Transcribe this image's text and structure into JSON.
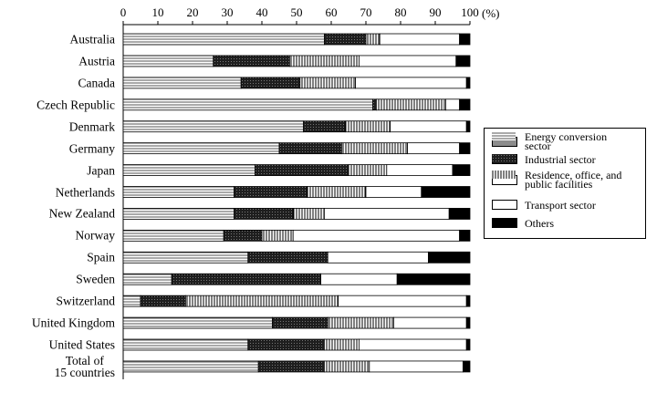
{
  "chart_data": {
    "type": "stacked-bar",
    "orientation": "horizontal",
    "xlabel": "(%)",
    "categories": [
      "Australia",
      "Austria",
      "Canada",
      "Czech Republic",
      "Denmark",
      "Germany",
      "Japan",
      "Netherlands",
      "New Zealand",
      "Norway",
      "Spain",
      "Sweden",
      "Switzerland",
      "United Kingdom",
      "United States",
      "Total of\n15 countries"
    ],
    "series": [
      {
        "name": "Energy conversion sector",
        "color": "#8c8c8c",
        "hatch": "horizontal",
        "values": [
          58,
          26,
          34,
          72,
          52,
          45,
          38,
          32,
          32,
          29,
          36,
          14,
          5,
          43,
          36,
          39
        ]
      },
      {
        "name": "Industrial sector",
        "color": "#1e1e1e",
        "hatch": "dots",
        "values": [
          12,
          22,
          17,
          1,
          12,
          18,
          27,
          21,
          17,
          11,
          23,
          43,
          13,
          16,
          22,
          19
        ]
      },
      {
        "name": "Residence, office, and public facilities",
        "color": "#ffffff",
        "hatch": "vertical",
        "values": [
          4,
          20,
          16,
          20,
          13,
          19,
          11,
          17,
          9,
          9,
          0,
          0,
          44,
          19,
          10,
          13
        ]
      },
      {
        "name": "Transport sector",
        "color": "#ffffff",
        "hatch": null,
        "values": [
          23,
          28,
          32,
          4,
          22,
          15,
          19,
          16,
          36,
          48,
          29,
          22,
          37,
          21,
          31,
          27
        ]
      },
      {
        "name": "Others",
        "color": "#000000",
        "hatch": null,
        "values": [
          3,
          4,
          1,
          3,
          1,
          3,
          5,
          14,
          6,
          3,
          12,
          21,
          1,
          1,
          1,
          2
        ]
      }
    ],
    "xlim": [
      0,
      100
    ],
    "xticks": [
      0,
      10,
      20,
      30,
      40,
      50,
      60,
      70,
      80,
      90,
      100
    ],
    "legend": "right"
  }
}
